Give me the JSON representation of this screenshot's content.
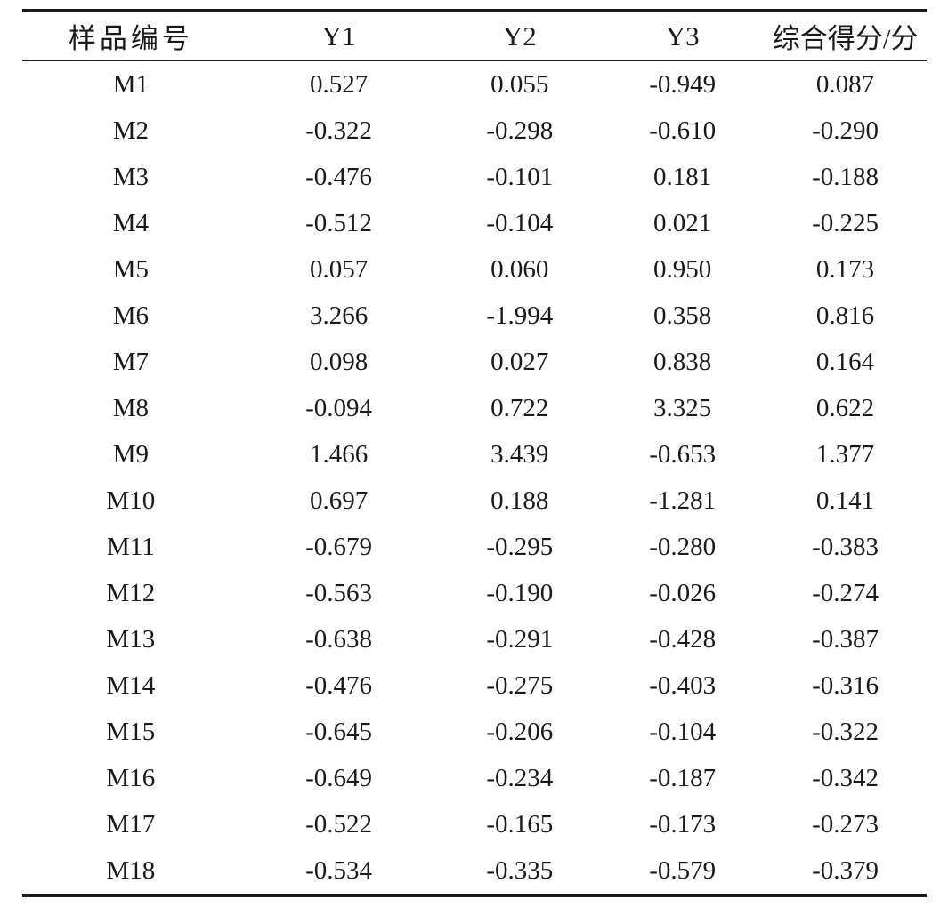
{
  "colors": {
    "background": "#ffffff",
    "text": "#1a1a1a",
    "rule": "#1a1a1a"
  },
  "table": {
    "headers": [
      "样品编号",
      "Y1",
      "Y2",
      "Y3",
      "综合得分/分"
    ],
    "rows": [
      [
        "M1",
        "0.527",
        "0.055",
        "-0.949",
        "0.087"
      ],
      [
        "M2",
        "-0.322",
        "-0.298",
        "-0.610",
        "-0.290"
      ],
      [
        "M3",
        "-0.476",
        "-0.101",
        "0.181",
        "-0.188"
      ],
      [
        "M4",
        "-0.512",
        "-0.104",
        "0.021",
        "-0.225"
      ],
      [
        "M5",
        "0.057",
        "0.060",
        "0.950",
        "0.173"
      ],
      [
        "M6",
        "3.266",
        "-1.994",
        "0.358",
        "0.816"
      ],
      [
        "M7",
        "0.098",
        "0.027",
        "0.838",
        "0.164"
      ],
      [
        "M8",
        "-0.094",
        "0.722",
        "3.325",
        "0.622"
      ],
      [
        "M9",
        "1.466",
        "3.439",
        "-0.653",
        "1.377"
      ],
      [
        "M10",
        "0.697",
        "0.188",
        "-1.281",
        "0.141"
      ],
      [
        "M11",
        "-0.679",
        "-0.295",
        "-0.280",
        "-0.383"
      ],
      [
        "M12",
        "-0.563",
        "-0.190",
        "-0.026",
        "-0.274"
      ],
      [
        "M13",
        "-0.638",
        "-0.291",
        "-0.428",
        "-0.387"
      ],
      [
        "M14",
        "-0.476",
        "-0.275",
        "-0.403",
        "-0.316"
      ],
      [
        "M15",
        "-0.645",
        "-0.206",
        "-0.104",
        "-0.322"
      ],
      [
        "M16",
        "-0.649",
        "-0.234",
        "-0.187",
        "-0.342"
      ],
      [
        "M17",
        "-0.522",
        "-0.165",
        "-0.173",
        "-0.273"
      ],
      [
        "M18",
        "-0.534",
        "-0.335",
        "-0.579",
        "-0.379"
      ]
    ]
  }
}
